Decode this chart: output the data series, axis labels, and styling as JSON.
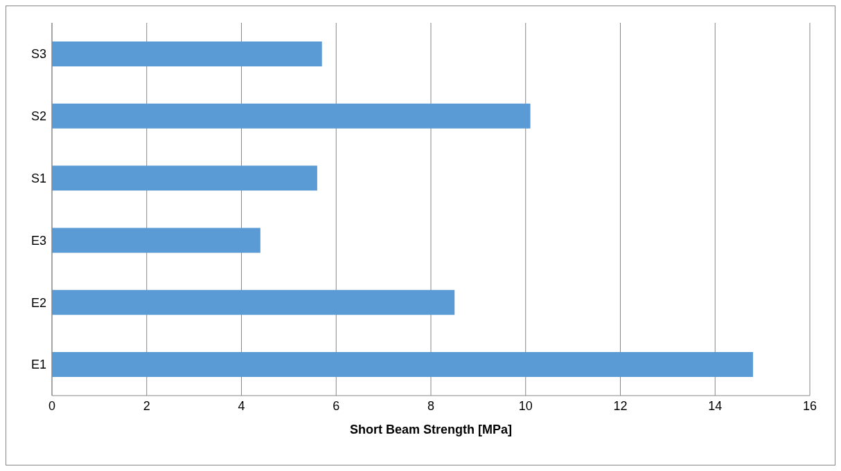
{
  "chart_data": {
    "type": "bar",
    "orientation": "horizontal",
    "xlabel": "Short Beam Strength [MPa]",
    "categories": [
      "S3",
      "S2",
      "S1",
      "E3",
      "E2",
      "E1"
    ],
    "values": [
      5.7,
      10.1,
      5.6,
      4.4,
      8.5,
      14.8
    ],
    "color": "#5b9bd5",
    "xlim": [
      0,
      16
    ],
    "xticks": [
      0,
      2,
      4,
      6,
      8,
      10,
      12,
      14,
      16
    ],
    "grid": "x"
  }
}
